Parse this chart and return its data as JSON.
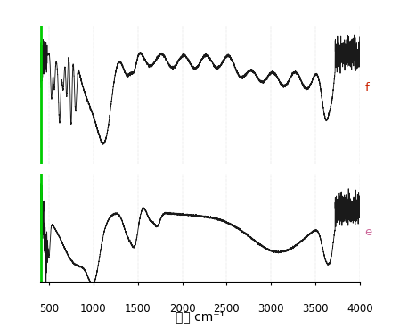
{
  "xmin": 400,
  "xmax": 4000,
  "label_f": "f",
  "label_e": "e",
  "line_color": "#1a1a1a",
  "green_color": "#00cc00",
  "pink_color": "#cc6699",
  "red_color": "#cc2200",
  "background": "#ffffff",
  "tick_label_size": 8.5,
  "xlabel_size": 10,
  "tick_positions": [
    500,
    1000,
    1500,
    2000,
    2500,
    3000,
    3500,
    4000
  ]
}
